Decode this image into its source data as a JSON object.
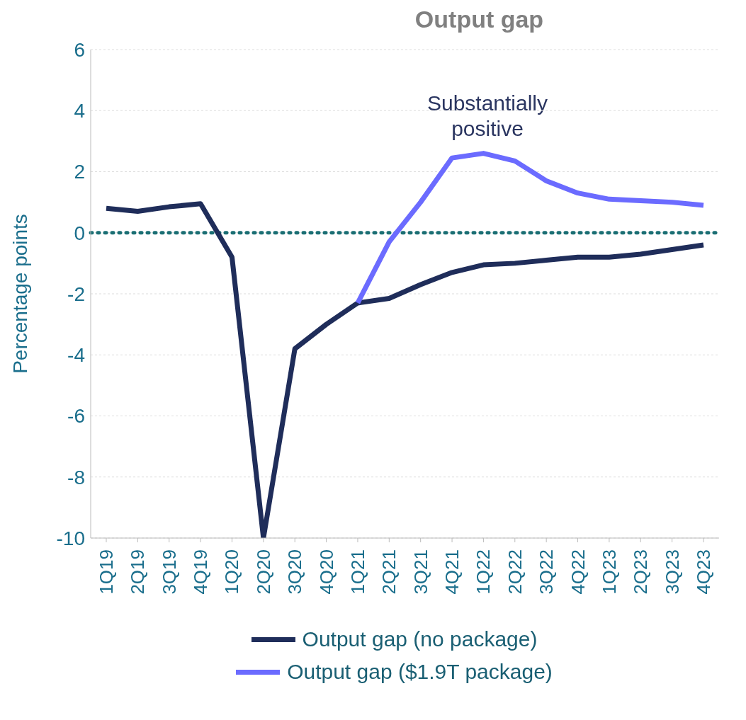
{
  "chart_data": {
    "type": "line",
    "title": "Output gap",
    "ylabel": "Percentage points",
    "categories": [
      "1Q19",
      "2Q19",
      "3Q19",
      "4Q19",
      "1Q20",
      "2Q20",
      "3Q20",
      "4Q20",
      "1Q21",
      "2Q21",
      "3Q21",
      "4Q21",
      "1Q22",
      "2Q22",
      "3Q22",
      "4Q22",
      "1Q23",
      "2Q23",
      "3Q23",
      "4Q23"
    ],
    "series": [
      {
        "name": "Output gap (no package)",
        "color": "#1f2d5a",
        "values": [
          0.8,
          0.7,
          0.85,
          0.95,
          -0.8,
          -10,
          -3.8,
          -3.0,
          -2.3,
          -2.15,
          -1.7,
          -1.3,
          -1.05,
          -1.0,
          -0.9,
          -0.8,
          -0.8,
          -0.7,
          -0.55,
          -0.4
        ]
      },
      {
        "name": "Output gap ($1.9T package)",
        "color": "#6b6bff",
        "values": [
          null,
          null,
          null,
          null,
          null,
          null,
          null,
          null,
          -2.3,
          -0.3,
          1.0,
          2.45,
          2.6,
          2.35,
          1.7,
          1.3,
          1.1,
          1.05,
          1.0,
          0.9
        ]
      }
    ],
    "ylim": [
      -10,
      6
    ],
    "yticks": [
      -10,
      -8,
      -6,
      -4,
      -2,
      0,
      2,
      4,
      6
    ],
    "grid": "y",
    "legend": "bottom",
    "marker": "none",
    "line_style": "solid",
    "ref_lines": [
      {
        "axis": "y",
        "value": 0,
        "color": "#1a6e73",
        "line_style": "dotted"
      }
    ],
    "annotations": [
      "Substantially positive"
    ]
  }
}
